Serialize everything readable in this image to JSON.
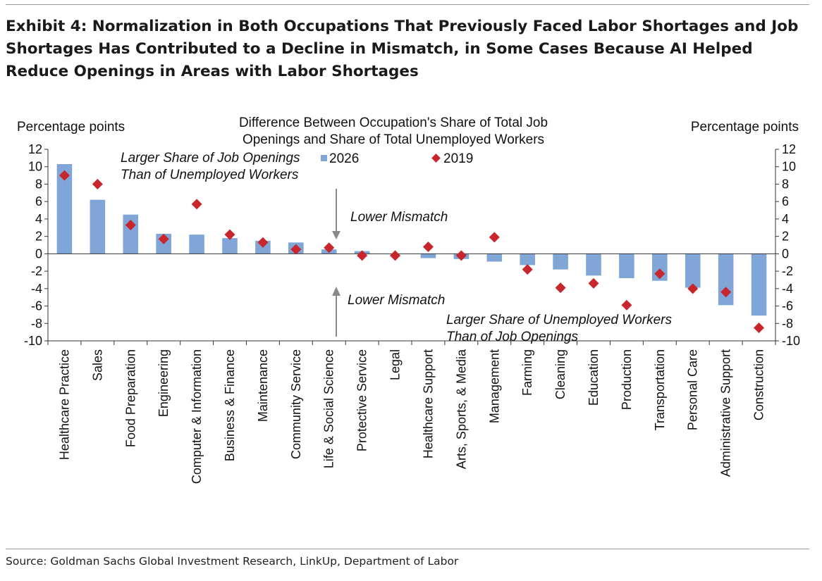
{
  "title": "Exhibit 4: Normalization in Both Occupations That Previously Faced Labor Shortages and Job Shortages Has Contributed to a Decline in Mismatch, in Some Cases Because AI Helped Reduce Openings in Areas with Labor Shortages",
  "source": "Source: Goldman Sachs Global Investment Research, LinkUp, Department of Labor",
  "colors": {
    "bar": "#7fa6d6",
    "marker": "#c8252c",
    "arrow": "#8a8a8a",
    "axis": "#333333"
  },
  "chart_data": {
    "type": "bar",
    "subtitle_lines": [
      "Difference Between Occupation's Share of Total Job",
      "Openings and Share of Total Unemployed Workers"
    ],
    "ylabel_left": "Percentage points",
    "ylabel_right": "Percentage points",
    "ylim": [
      -10,
      12
    ],
    "yticks": [
      12,
      10,
      8,
      6,
      4,
      2,
      0,
      -2,
      -4,
      -6,
      -8,
      -10
    ],
    "categories": [
      "Healthcare Practice",
      "Sales",
      "Food Preparation",
      "Engineering",
      "Computer & Information",
      "Business & Finance",
      "Maintenance",
      "Community Service",
      "Life & Social Science",
      "Protective Service",
      "Legal",
      "Healthcare Support",
      "Arts, Sports, & Media",
      "Management",
      "Farming",
      "Cleaning",
      "Education",
      "Production",
      "Transportation",
      "Personal Care",
      "Administrative Support",
      "Construction"
    ],
    "series": [
      {
        "name": "2026",
        "kind": "bar",
        "values": [
          10.3,
          6.2,
          4.5,
          2.3,
          2.2,
          1.8,
          1.5,
          1.3,
          0.5,
          0.3,
          0.0,
          -0.5,
          -0.6,
          -0.9,
          -1.3,
          -1.8,
          -2.5,
          -2.8,
          -3.1,
          -3.9,
          -5.9,
          -7.1
        ]
      },
      {
        "name": "2019",
        "kind": "marker",
        "values": [
          9.0,
          8.0,
          3.3,
          1.7,
          5.7,
          2.2,
          1.3,
          0.5,
          0.7,
          -0.2,
          -0.2,
          0.8,
          -0.2,
          1.9,
          -1.8,
          -3.9,
          -3.4,
          -5.9,
          -2.3,
          -4.0,
          -4.4,
          -8.5
        ]
      }
    ],
    "annotations": {
      "upper_label": [
        "Larger Share of Job Openings",
        "Than of Unemployed Workers"
      ],
      "lower_label": [
        "Larger Share of Unemployed Workers",
        "Than of Job Openings"
      ],
      "arrow_down_label": "Lower Mismatch",
      "arrow_up_label": "Lower Mismatch"
    }
  }
}
